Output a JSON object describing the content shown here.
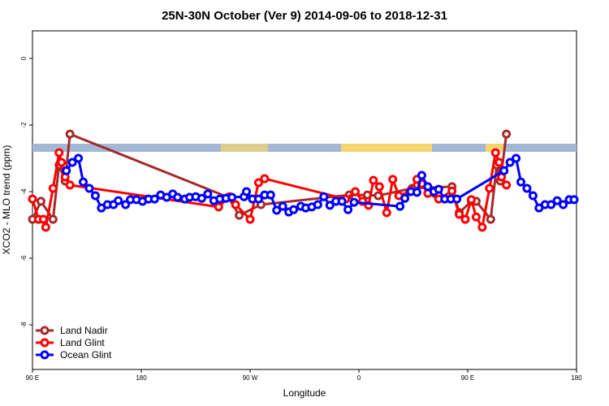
{
  "chart_data": {
    "type": "line",
    "title": "25N-30N October (Ver 9)   2014-09-06 to 2018-12-31",
    "xlabel": "Longitude",
    "ylabel": "XCO2 - MLO trend (ppm)",
    "xlim": [
      90,
      540
    ],
    "ylim": [
      -9.34,
      0.83
    ],
    "xticks": [
      {
        "value": 90,
        "label": "90 E"
      },
      180,
      {
        "value": 270,
        "label": "90 W"
      },
      {
        "value": 360,
        "label": "0"
      },
      {
        "value": 450,
        "label": "90 E"
      },
      {
        "value": 540,
        "label": "180"
      }
    ],
    "yticks": [
      0,
      -2,
      -4,
      -6,
      -8
    ],
    "legend": "bottom-left",
    "series": [
      {
        "name": "Land Nadir",
        "color": "#a52a2a",
        "x": [
          90,
          97,
          107,
          112,
          117,
          121,
          252,
          261,
          279,
          352,
          367,
          376,
          404,
          437,
          443,
          453,
          457,
          469,
          474,
          477,
          482
        ],
        "values": [
          -4.83,
          -4.29,
          -4.83,
          -3.2,
          -3.68,
          -2.27,
          -4.17,
          -4.71,
          -4.39,
          -4.1,
          -4.1,
          -4.12,
          -3.9,
          -3.85,
          -4.63,
          -4.29,
          -4.29,
          -4.83,
          -3.2,
          -3.68,
          -2.27
        ]
      },
      {
        "name": "Land Glint",
        "color": "#ff0000",
        "x": [
          90,
          95,
          99,
          101,
          107,
          112,
          114,
          117,
          121,
          244,
          253,
          258,
          270,
          277,
          282,
          349,
          357,
          363,
          368,
          372,
          377,
          383,
          388,
          393,
          402,
          408,
          412,
          417,
          426,
          437,
          443,
          448,
          453,
          457,
          462,
          468,
          473,
          476,
          478,
          482
        ],
        "values": [
          -4.22,
          -4.83,
          -4.83,
          -5.07,
          -3.9,
          -2.83,
          -3.12,
          -3.56,
          -3.8,
          -4.46,
          -4.15,
          -4.39,
          -4.83,
          -3.73,
          -3.61,
          -4.22,
          -4.0,
          -4.29,
          -4.41,
          -3.66,
          -3.85,
          -4.63,
          -3.63,
          -4.12,
          -4.0,
          -3.63,
          -3.76,
          -4.05,
          -4.22,
          -3.98,
          -4.68,
          -4.83,
          -4.24,
          -4.76,
          -5.07,
          -3.9,
          -2.83,
          -3.12,
          -3.56,
          -3.8
        ]
      },
      {
        "name": "Ocean Glint",
        "color": "#0000ff",
        "x": [
          118,
          123,
          128,
          132,
          137,
          142,
          147,
          152,
          157,
          161,
          167,
          171,
          176,
          181,
          186,
          191,
          196,
          201,
          206,
          210,
          216,
          220,
          225,
          230,
          235,
          240,
          245,
          250,
          255,
          265,
          267,
          272,
          277,
          282,
          287,
          292,
          297,
          302,
          306,
          312,
          316,
          321,
          326,
          331,
          336,
          341,
          346,
          351,
          356,
          394,
          398,
          403,
          408,
          412,
          417,
          422,
          426,
          431,
          436,
          441,
          480,
          485,
          490,
          494,
          499,
          504,
          509,
          514,
          519,
          524,
          529,
          534,
          538
        ],
        "values": [
          -3.37,
          -3.12,
          -3.0,
          -3.71,
          -3.9,
          -4.12,
          -4.49,
          -4.39,
          -4.39,
          -4.27,
          -4.39,
          -4.24,
          -4.24,
          -4.29,
          -4.22,
          -4.22,
          -4.1,
          -4.17,
          -4.07,
          -4.17,
          -4.22,
          -4.17,
          -4.15,
          -4.2,
          -4.07,
          -4.27,
          -4.22,
          -4.2,
          -4.17,
          -4.15,
          -4.0,
          -4.22,
          -4.22,
          -4.1,
          -4.1,
          -4.56,
          -4.44,
          -4.61,
          -4.54,
          -4.44,
          -4.49,
          -4.46,
          -4.39,
          -4.15,
          -4.41,
          -4.29,
          -4.29,
          -4.54,
          -4.32,
          -4.44,
          -4.2,
          -4.0,
          -4.02,
          -3.51,
          -3.85,
          -4.0,
          -3.93,
          -4.22,
          -4.22,
          -4.22,
          -3.37,
          -3.12,
          -3.0,
          -3.71,
          -3.9,
          -4.12,
          -4.49,
          -4.39,
          -4.39,
          -4.27,
          -4.39,
          -4.24,
          -4.24
        ]
      }
    ]
  }
}
